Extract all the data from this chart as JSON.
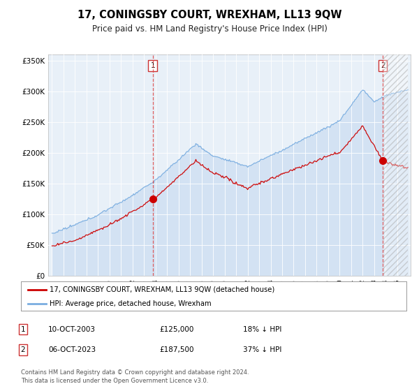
{
  "title": "17, CONINGSBY COURT, WREXHAM, LL13 9QW",
  "subtitle": "Price paid vs. HM Land Registry's House Price Index (HPI)",
  "hpi_line_color": "#7aade0",
  "hpi_fill_color": "#c5daf0",
  "house_color": "#cc0000",
  "plot_bg": "#e8f0f8",
  "sale1_date_idx": 105,
  "sale1_price": 125000,
  "sale1_display": "10-OCT-2003",
  "sale2_date_idx": 345,
  "sale2_price": 187500,
  "sale2_display": "06-OCT-2023",
  "ylim": [
    0,
    360000
  ],
  "yticks": [
    0,
    50000,
    100000,
    150000,
    200000,
    250000,
    300000,
    350000
  ],
  "legend_house": "17, CONINGSBY COURT, WREXHAM, LL13 9QW (detached house)",
  "legend_hpi": "HPI: Average price, detached house, Wrexham",
  "footnote": "Contains HM Land Registry data © Crown copyright and database right 2024.\nThis data is licensed under the Open Government Licence v3.0.",
  "sale1_pct": "18%",
  "sale2_pct": "37%"
}
